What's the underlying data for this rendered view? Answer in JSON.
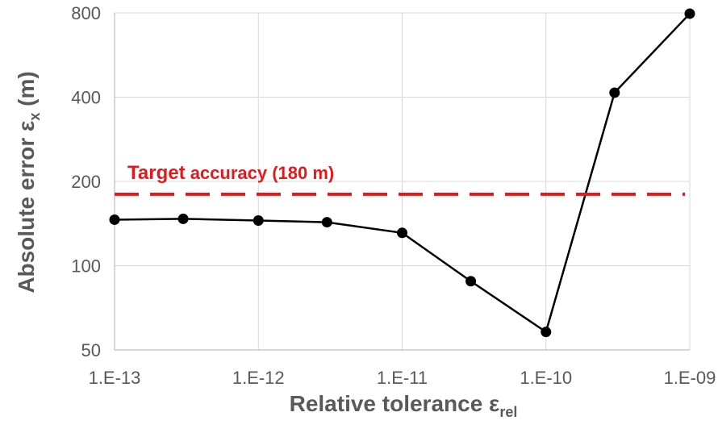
{
  "chart_data": {
    "type": "line",
    "xlabel": {
      "main": "Relative tolerance ε",
      "sub": "rel"
    },
    "ylabel": {
      "main": "Absolute error ε",
      "sub": "x",
      "suffix": " (m)"
    },
    "x_scale": "log",
    "y_scale": "log",
    "xlim": [
      1e-13,
      1e-09
    ],
    "ylim": [
      50,
      800
    ],
    "x_ticks": [
      {
        "value": 1e-13,
        "label": "1.E-13"
      },
      {
        "value": 1e-12,
        "label": "1.E-12"
      },
      {
        "value": 1e-11,
        "label": "1.E-11"
      },
      {
        "value": 1e-10,
        "label": "1.E-10"
      },
      {
        "value": 1e-09,
        "label": "1.E-09"
      }
    ],
    "y_ticks": [
      {
        "value": 50,
        "label": "50"
      },
      {
        "value": 100,
        "label": "100"
      },
      {
        "value": 200,
        "label": "200"
      },
      {
        "value": 400,
        "label": "400"
      },
      {
        "value": 800,
        "label": "800"
      }
    ],
    "grid": true,
    "legend": "none",
    "series": [
      {
        "color": "#000000",
        "points": [
          {
            "x": 1e-13,
            "y": 146
          },
          {
            "x": 3e-13,
            "y": 147
          },
          {
            "x": 1e-12,
            "y": 145
          },
          {
            "x": 3e-12,
            "y": 143
          },
          {
            "x": 1e-11,
            "y": 131
          },
          {
            "x": 3e-11,
            "y": 88
          },
          {
            "x": 1e-10,
            "y": 58
          },
          {
            "x": 3e-10,
            "y": 415
          },
          {
            "x": 1e-09,
            "y": 795
          }
        ]
      }
    ],
    "annotations": [
      {
        "type": "hline",
        "y": 180,
        "color": "#e31a1c",
        "style": "dashed",
        "label": {
          "main": "Target",
          "rest": " accuracy (180 m)"
        }
      }
    ]
  }
}
